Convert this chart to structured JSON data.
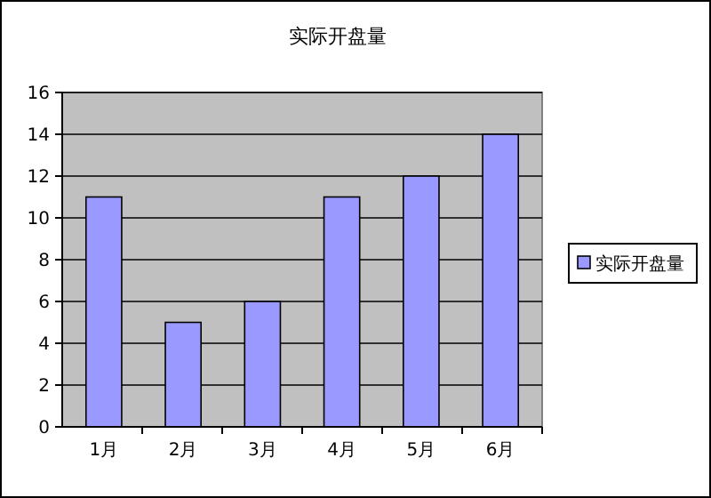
{
  "chart_data": {
    "type": "bar",
    "title": "实际开盘量",
    "categories": [
      "1月",
      "2月",
      "3月",
      "4月",
      "5月",
      "6月"
    ],
    "series": [
      {
        "name": "实际开盘量",
        "color": "#9999ff",
        "values": [
          11,
          5,
          6,
          11,
          12,
          14
        ]
      }
    ],
    "ylim": [
      0,
      16
    ],
    "yticks": [
      0,
      2,
      4,
      6,
      8,
      10,
      12,
      14,
      16
    ],
    "grid": "y",
    "legend": "right"
  }
}
